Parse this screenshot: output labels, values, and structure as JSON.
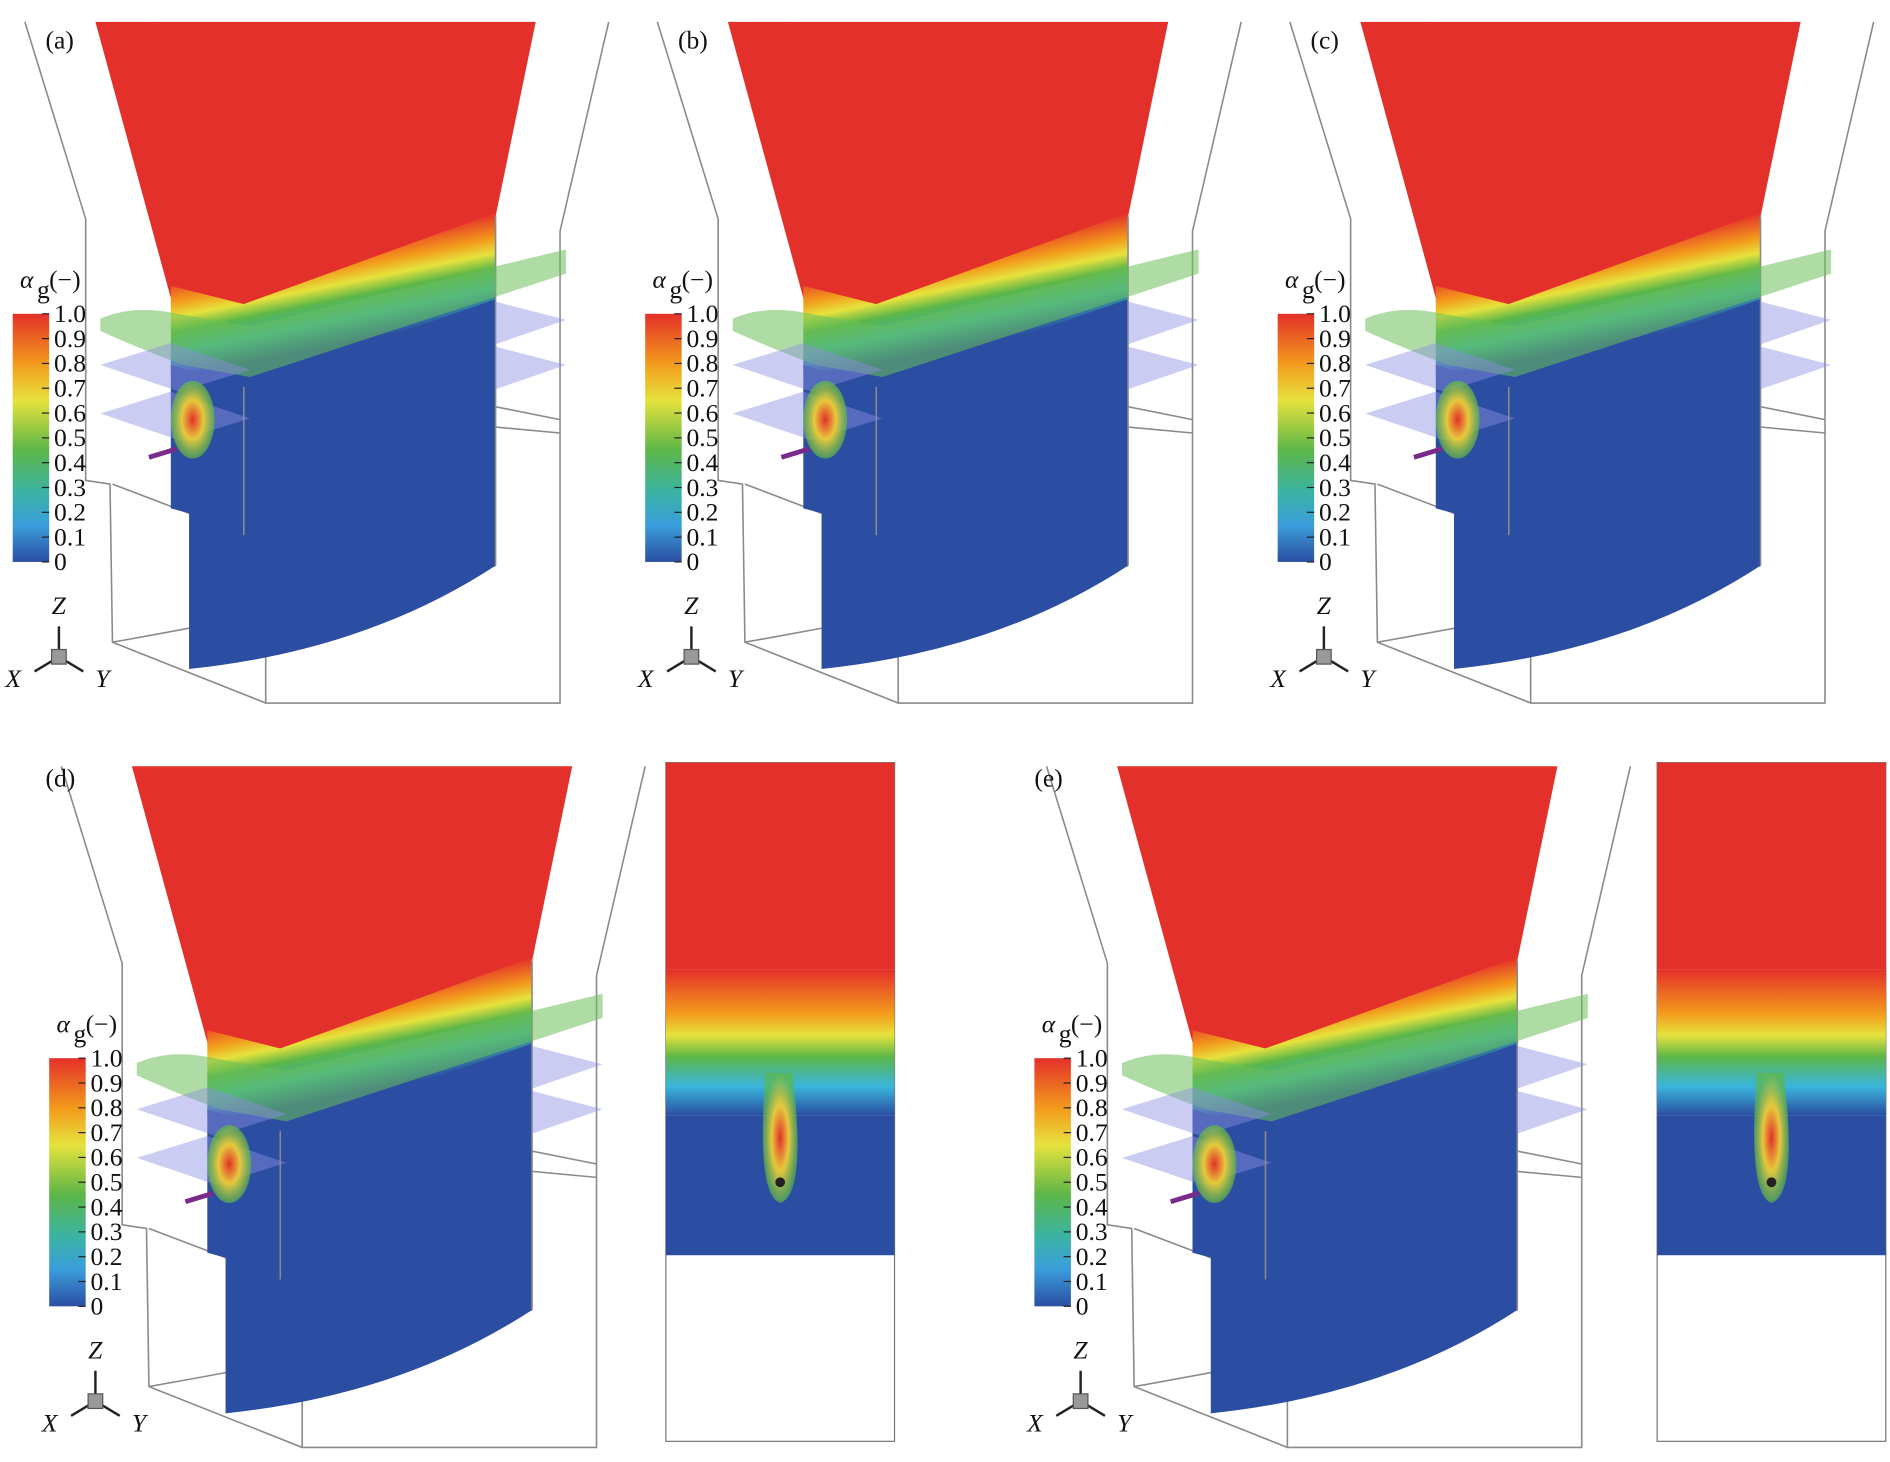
{
  "panels": [
    {
      "label": "(a)"
    },
    {
      "label": "(b)"
    },
    {
      "label": "(c)"
    },
    {
      "label": "(d)"
    },
    {
      "label": "(e)"
    }
  ],
  "colorbar": {
    "title": {
      "symbol": "α",
      "subscript": "g",
      "unit": "(−)"
    },
    "ticks": [
      {
        "value": 1,
        "label": "1.0"
      },
      0.9,
      0.8,
      0.7,
      0.6,
      0.5,
      0.4,
      0.3,
      0.2,
      0.1,
      0
    ]
  },
  "axes": {
    "z": "Z",
    "x": "X",
    "y": "Y"
  }
}
